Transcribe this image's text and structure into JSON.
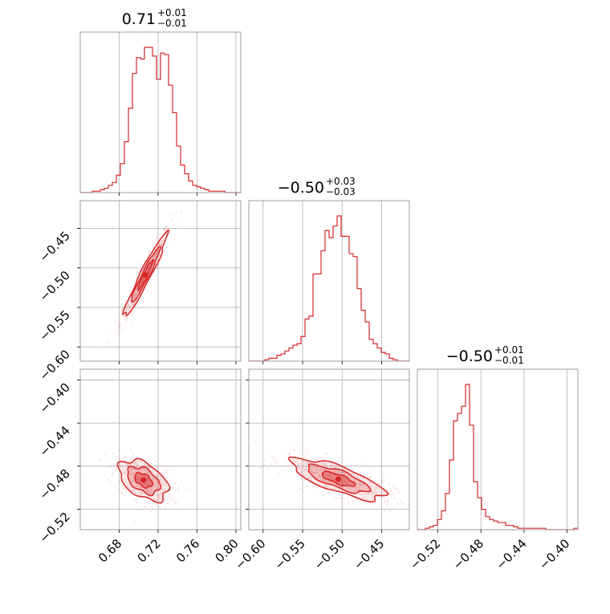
{
  "chart_data": {
    "type": "corner",
    "color": "#d62728",
    "grid": true,
    "parameters": [
      {
        "median": 0.71,
        "plus": 0.01,
        "minus": 0.01,
        "range": [
          0.64,
          0.805
        ]
      },
      {
        "median": -0.5,
        "plus": 0.03,
        "minus": 0.03,
        "range": [
          -0.618,
          -0.415
        ]
      },
      {
        "median": -0.5,
        "plus": 0.01,
        "minus": 0.01,
        "range": [
          -0.539,
          -0.39
        ]
      }
    ],
    "titles": [
      {
        "main": "0.71",
        "sup": "+0.01",
        "sub": "−0.01"
      },
      {
        "main": "−0.50",
        "sup": "+0.03",
        "sub": "−0.03"
      },
      {
        "main": "−0.50",
        "sup": "+0.01",
        "sub": "−0.01"
      }
    ],
    "ticks": [
      {
        "values": [
          0.68,
          0.72,
          0.76,
          0.8
        ],
        "labels": [
          "0.68",
          "0.72",
          "0.76",
          "0.80"
        ]
      },
      {
        "values": [
          -0.6,
          -0.55,
          -0.5,
          -0.45
        ],
        "labels": [
          "−0.60",
          "−0.55",
          "−0.50",
          "−0.45"
        ]
      },
      {
        "values": [
          -0.52,
          -0.48,
          -0.44,
          -0.4
        ],
        "labels": [
          "−0.52",
          "−0.48",
          "−0.44",
          "−0.40"
        ]
      }
    ],
    "histograms": [
      {
        "param": 0,
        "bins": 40,
        "counts": [
          0,
          0,
          0,
          1,
          1,
          2,
          3,
          5,
          7,
          12,
          20,
          35,
          58,
          82,
          93,
          92,
          100,
          100,
          94,
          78,
          96,
          95,
          74,
          55,
          32,
          19,
          13,
          8,
          5,
          4,
          3,
          2,
          1,
          1,
          1,
          1,
          0,
          0,
          0,
          0
        ]
      },
      {
        "param": 1,
        "bins": 40,
        "counts": [
          0,
          0,
          0,
          0,
          1,
          2,
          2,
          4,
          5,
          7,
          9,
          11,
          12,
          17,
          29,
          31,
          60,
          60,
          76,
          90,
          85,
          93,
          100,
          86,
          86,
          74,
          72,
          50,
          35,
          27,
          15,
          12,
          9,
          6,
          5,
          2,
          1,
          0,
          0,
          0
        ]
      },
      {
        "param": 2,
        "bins": 40,
        "counts": [
          0,
          0,
          1,
          2,
          3,
          7,
          13,
          25,
          48,
          75,
          80,
          85,
          100,
          72,
          33,
          22,
          14,
          9,
          7,
          6,
          5,
          5,
          3,
          3,
          2,
          1,
          1,
          1,
          1,
          1,
          1,
          1,
          0,
          0,
          0,
          0,
          0,
          0,
          0,
          1
        ]
      }
    ],
    "joint": [
      {
        "x": 0,
        "y": 1,
        "mean": [
          0.707,
          -0.509
        ],
        "sd": [
          0.0105,
          0.025
        ],
        "corr": 0.96
      },
      {
        "x": 0,
        "y": 2,
        "mean": [
          0.705,
          -0.493
        ],
        "sd": [
          0.012,
          0.009
        ],
        "corr": -0.45
      },
      {
        "x": 1,
        "y": 2,
        "mean": [
          -0.505,
          -0.492
        ],
        "sd": [
          0.028,
          0.009
        ],
        "corr": -0.75
      }
    ]
  }
}
